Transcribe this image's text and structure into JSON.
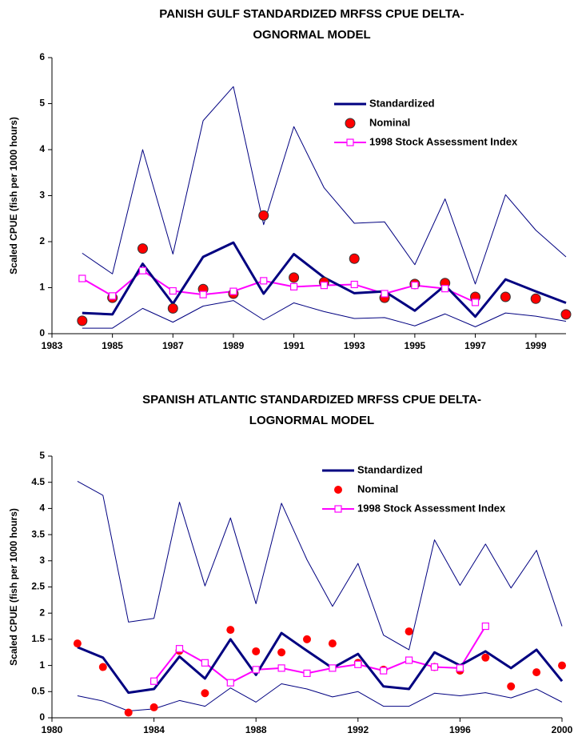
{
  "chart_data": [
    {
      "type": "line",
      "title": [
        "PANISH GULF STANDARDIZED MRFSS CPUE DELTA-",
        "OGNORMAL MODEL"
      ],
      "y_label": "Scaled CPUE (fish per 1000 hours)",
      "x": [
        1984,
        1985,
        1986,
        1987,
        1988,
        1989,
        1990,
        1991,
        1992,
        1993,
        1994,
        1995,
        1996,
        1997,
        1998,
        1999,
        2000
      ],
      "xlim": [
        1983,
        2000
      ],
      "xticks": [
        1983,
        1985,
        1987,
        1989,
        1991,
        1993,
        1995,
        1997,
        1999
      ],
      "ylim": [
        0,
        6
      ],
      "yticks": [
        0,
        1,
        2,
        3,
        4,
        5,
        6
      ],
      "series": [
        {
          "name": "Standardized",
          "color": "#000080",
          "width": 3,
          "values": [
            0.45,
            0.42,
            1.52,
            0.65,
            1.67,
            1.98,
            0.87,
            1.73,
            1.22,
            0.88,
            0.92,
            0.5,
            1.05,
            0.37,
            1.18,
            0.92,
            0.67
          ]
        },
        {
          "name": "Nominal",
          "color": "#ff0000",
          "marker": "circle",
          "marker_size": 6,
          "marker_edge": "#333333",
          "values": [
            0.28,
            0.78,
            1.85,
            0.55,
            0.97,
            0.87,
            2.57,
            1.22,
            1.12,
            1.63,
            0.78,
            1.08,
            1.1,
            0.8,
            0.8,
            0.76,
            0.42
          ]
        },
        {
          "name": "1998 Stock Assessment Index",
          "color": "#ff00ff",
          "width": 2,
          "marker": "square",
          "values": [
            1.2,
            0.82,
            1.37,
            0.93,
            0.85,
            0.92,
            1.15,
            1.02,
            1.05,
            1.07,
            0.87,
            1.05,
            0.98,
            0.68,
            null,
            null,
            null
          ]
        },
        {
          "color": "#000080",
          "width": 1,
          "values": [
            1.75,
            1.3,
            4.0,
            1.73,
            4.63,
            5.37,
            2.37,
            4.5,
            3.17,
            2.4,
            2.43,
            1.5,
            2.93,
            1.08,
            3.02,
            2.25,
            1.67
          ]
        },
        {
          "color": "#000080",
          "width": 1,
          "values": [
            0.12,
            0.12,
            0.55,
            0.25,
            0.6,
            0.72,
            0.3,
            0.67,
            0.48,
            0.33,
            0.35,
            0.17,
            0.43,
            0.15,
            0.45,
            0.38,
            0.27
          ]
        }
      ]
    },
    {
      "type": "line",
      "title": [
        "SPANISH ATLANTIC STANDARDIZED MRFSS CPUE DELTA-",
        "LOGNORMAL MODEL"
      ],
      "y_label": "Scaled CPUE (fish per 1000 hours)",
      "x": [
        1981,
        1982,
        1983,
        1984,
        1985,
        1986,
        1987,
        1988,
        1989,
        1990,
        1991,
        1992,
        1993,
        1994,
        1995,
        1996,
        1997,
        1998,
        1999,
        2000
      ],
      "xlim": [
        1980,
        2000
      ],
      "xticks": [
        1980,
        1984,
        1988,
        1992,
        1996,
        2000
      ],
      "ylim": [
        0,
        5
      ],
      "yticks": [
        0,
        0.5,
        1,
        1.5,
        2,
        2.5,
        3,
        3.5,
        4,
        4.5,
        5
      ],
      "series": [
        {
          "name": "Standardized",
          "color": "#000080",
          "width": 3,
          "values": [
            1.35,
            1.15,
            0.48,
            0.55,
            1.17,
            0.75,
            1.5,
            0.82,
            1.62,
            1.28,
            0.95,
            1.22,
            0.6,
            0.55,
            1.25,
            1.0,
            1.27,
            0.95,
            1.3,
            0.7
          ]
        },
        {
          "name": "Nominal",
          "color": "#ff0000",
          "marker": "circle",
          "marker_size": 5,
          "values": [
            1.42,
            0.97,
            0.1,
            0.2,
            1.28,
            0.47,
            1.68,
            1.27,
            1.25,
            1.5,
            1.42,
            1.05,
            0.92,
            1.65,
            0.97,
            0.9,
            1.15,
            0.6,
            0.87,
            1.0
          ]
        },
        {
          "name": "1998 Stock Assessment Index",
          "color": "#ff00ff",
          "width": 2,
          "marker": "square",
          "values": [
            null,
            null,
            null,
            0.7,
            1.32,
            1.05,
            0.67,
            0.92,
            0.95,
            0.85,
            0.95,
            1.02,
            0.9,
            1.1,
            0.97,
            0.95,
            1.75,
            null,
            null,
            null
          ]
        },
        {
          "color": "#000080",
          "width": 1,
          "values": [
            4.52,
            4.25,
            1.83,
            1.9,
            4.12,
            2.52,
            3.82,
            2.18,
            4.1,
            3.02,
            2.13,
            2.95,
            1.58,
            1.3,
            3.4,
            2.53,
            3.32,
            2.48,
            3.2,
            1.75
          ]
        },
        {
          "color": "#000080",
          "width": 1,
          "values": [
            0.42,
            0.32,
            0.13,
            0.17,
            0.33,
            0.22,
            0.57,
            0.3,
            0.65,
            0.55,
            0.4,
            0.5,
            0.22,
            0.22,
            0.47,
            0.42,
            0.48,
            0.38,
            0.55,
            0.3
          ]
        }
      ]
    }
  ]
}
